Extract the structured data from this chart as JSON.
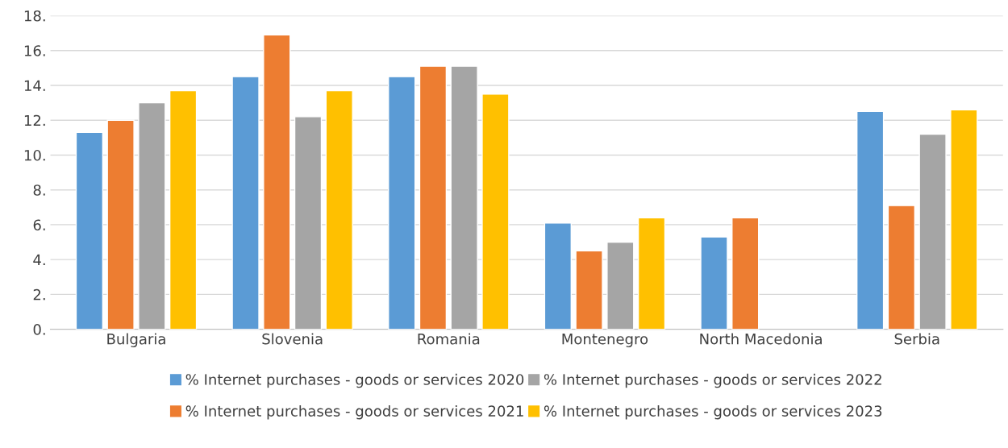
{
  "chart_data": {
    "type": "bar",
    "categories": [
      "Bulgaria",
      "Slovenia",
      "Romania",
      "Montenegro",
      "North Macedonia",
      "Serbia"
    ],
    "series": [
      {
        "name": "% Internet purchases - goods or services 2020",
        "color": "#5b9bd5",
        "values": [
          11.3,
          14.5,
          14.5,
          6.1,
          5.3,
          12.5
        ]
      },
      {
        "name": "% Internet purchases - goods or services 2021",
        "color": "#ed7d31",
        "values": [
          12.0,
          16.9,
          15.1,
          4.5,
          6.4,
          7.1
        ]
      },
      {
        "name": "% Internet purchases - goods or services 2022",
        "color": "#a5a5a5",
        "values": [
          13.0,
          12.2,
          15.1,
          5.0,
          null,
          11.2
        ]
      },
      {
        "name": "% Internet purchases - goods or services 2023",
        "color": "#ffc000",
        "values": [
          13.7,
          13.7,
          13.5,
          6.4,
          null,
          12.6
        ]
      }
    ],
    "ylim": [
      0,
      18
    ],
    "yticks": [
      {
        "value": 0,
        "label": "0."
      },
      {
        "value": 2,
        "label": "2."
      },
      {
        "value": 4,
        "label": "4."
      },
      {
        "value": 6,
        "label": "6."
      },
      {
        "value": 8,
        "label": "8."
      },
      {
        "value": 10,
        "label": "10."
      },
      {
        "value": 12,
        "label": "12."
      },
      {
        "value": 14,
        "label": "14."
      },
      {
        "value": 16,
        "label": "16."
      },
      {
        "value": 18,
        "label": "18."
      }
    ],
    "grid": "y",
    "legend": "bottom"
  }
}
